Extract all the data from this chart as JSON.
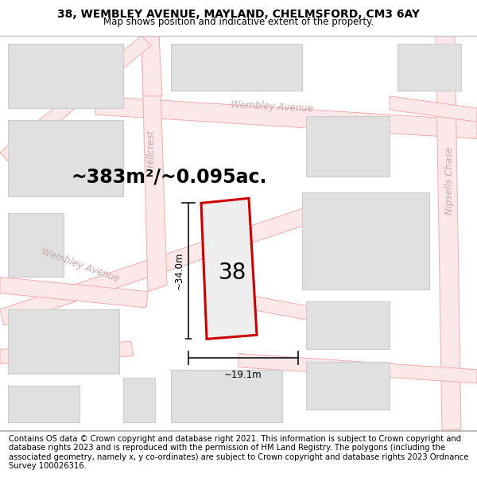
{
  "title": "38, WEMBLEY AVENUE, MAYLAND, CHELMSFORD, CM3 6AY",
  "subtitle": "Map shows position and indicative extent of the property.",
  "footer": "Contains OS data © Crown copyright and database right 2021. This information is subject to Crown copyright and database rights 2023 and is reproduced with the permission of HM Land Registry. The polygons (including the associated geometry, namely x, y co-ordinates) are subject to Crown copyright and database rights 2023 Ordnance Survey 100026316.",
  "area_label": "~383m²/~0.095ac.",
  "number_label": "38",
  "dim_v": "~34.0m",
  "dim_h": "~19.1m",
  "road_line_color": "#f5aaaa",
  "road_fill_color": "#fce8e8",
  "building_fill": "#e0e0e0",
  "building_stroke": "#cccccc",
  "highlight_fill": "#eeeeee",
  "highlight_stroke": "#cc0000",
  "street_label_color": "#c8a8a8",
  "dim_line_color": "#222222",
  "title_fontsize": 10,
  "subtitle_fontsize": 8.5,
  "footer_fontsize": 7.2,
  "area_fontsize": 17,
  "number_fontsize": 20,
  "dim_fontsize": 8.5
}
